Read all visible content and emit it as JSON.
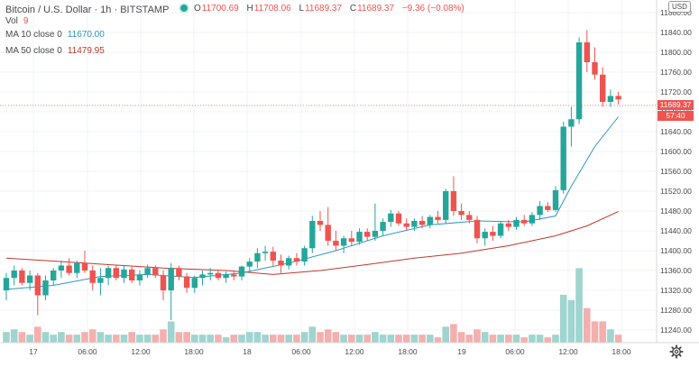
{
  "header": {
    "symbol_title": "Bitcoin / U.S. Dollar",
    "interval": "1h",
    "exchange": "BITSTAMP",
    "ohlc": {
      "open_label": "O",
      "open": "11700.69",
      "high_label": "H",
      "high": "11708.06",
      "low_label": "L",
      "low": "11689.37",
      "close_label": "C",
      "close": "11689.37",
      "change": "−9.36 (−0.08%)"
    },
    "volume": {
      "label": "Vol",
      "value": "9"
    },
    "ma10": {
      "label": "MA 10 close 0",
      "value": "11670.00"
    },
    "ma50": {
      "label": "MA 50 close 0",
      "value": "11479.95"
    }
  },
  "price_axis": {
    "currency": "USD",
    "ticks": [
      "11880.00",
      "11840.00",
      "11800.00",
      "11760.00",
      "11720.00",
      "11680.00",
      "11640.00",
      "11600.00",
      "11560.00",
      "11520.00",
      "11480.00",
      "11440.00",
      "11400.00",
      "11360.00",
      "11320.00",
      "11280.00",
      "11240.00"
    ],
    "last_price": "11689.37",
    "countdown": "57:40"
  },
  "time_axis": {
    "ticks": [
      "17",
      "06:00",
      "12:00",
      "18:00",
      "18",
      "06:00",
      "12:00",
      "18:00",
      "19",
      "06:00",
      "12:00",
      "18:00"
    ]
  },
  "colors": {
    "up": "#26a69a",
    "down": "#ef5350",
    "ma10": "#2c97c4",
    "ma50": "#c0392b",
    "vol_up": "#9fd4cf",
    "vol_down": "#f3b0ae"
  },
  "icons": {
    "settings": "gear-icon"
  },
  "chart_data": {
    "type": "candlestick",
    "y_range": [
      11200,
      11890
    ],
    "candles": [
      {
        "o": 11320,
        "h": 11355,
        "l": 11300,
        "c": 11345,
        "v": 4
      },
      {
        "o": 11345,
        "h": 11370,
        "l": 11330,
        "c": 11360,
        "v": 5
      },
      {
        "o": 11360,
        "h": 11365,
        "l": 11330,
        "c": 11335,
        "v": 4
      },
      {
        "o": 11335,
        "h": 11360,
        "l": 11320,
        "c": 11350,
        "v": 3
      },
      {
        "o": 11350,
        "h": 11355,
        "l": 11270,
        "c": 11310,
        "v": 6
      },
      {
        "o": 11310,
        "h": 11350,
        "l": 11300,
        "c": 11340,
        "v": 4
      },
      {
        "o": 11340,
        "h": 11365,
        "l": 11330,
        "c": 11360,
        "v": 3
      },
      {
        "o": 11360,
        "h": 11380,
        "l": 11345,
        "c": 11370,
        "v": 4
      },
      {
        "o": 11370,
        "h": 11385,
        "l": 11350,
        "c": 11355,
        "v": 3
      },
      {
        "o": 11355,
        "h": 11380,
        "l": 11345,
        "c": 11375,
        "v": 3
      },
      {
        "o": 11375,
        "h": 11400,
        "l": 11355,
        "c": 11360,
        "v": 4
      },
      {
        "o": 11360,
        "h": 11370,
        "l": 11320,
        "c": 11335,
        "v": 5
      },
      {
        "o": 11335,
        "h": 11365,
        "l": 11310,
        "c": 11345,
        "v": 4
      },
      {
        "o": 11345,
        "h": 11370,
        "l": 11330,
        "c": 11365,
        "v": 3
      },
      {
        "o": 11365,
        "h": 11370,
        "l": 11340,
        "c": 11345,
        "v": 3
      },
      {
        "o": 11345,
        "h": 11370,
        "l": 11335,
        "c": 11362,
        "v": 3
      },
      {
        "o": 11362,
        "h": 11368,
        "l": 11335,
        "c": 11340,
        "v": 4
      },
      {
        "o": 11340,
        "h": 11360,
        "l": 11330,
        "c": 11352,
        "v": 3
      },
      {
        "o": 11352,
        "h": 11372,
        "l": 11345,
        "c": 11365,
        "v": 3
      },
      {
        "o": 11365,
        "h": 11370,
        "l": 11345,
        "c": 11350,
        "v": 3
      },
      {
        "o": 11350,
        "h": 11360,
        "l": 11300,
        "c": 11320,
        "v": 5
      },
      {
        "o": 11320,
        "h": 11375,
        "l": 11260,
        "c": 11365,
        "v": 8
      },
      {
        "o": 11365,
        "h": 11370,
        "l": 11340,
        "c": 11348,
        "v": 4
      },
      {
        "o": 11348,
        "h": 11355,
        "l": 11315,
        "c": 11325,
        "v": 4
      },
      {
        "o": 11325,
        "h": 11350,
        "l": 11315,
        "c": 11345,
        "v": 3
      },
      {
        "o": 11345,
        "h": 11360,
        "l": 11330,
        "c": 11352,
        "v": 3
      },
      {
        "o": 11352,
        "h": 11365,
        "l": 11340,
        "c": 11355,
        "v": 3
      },
      {
        "o": 11355,
        "h": 11362,
        "l": 11340,
        "c": 11345,
        "v": 3
      },
      {
        "o": 11345,
        "h": 11358,
        "l": 11335,
        "c": 11352,
        "v": 2
      },
      {
        "o": 11352,
        "h": 11360,
        "l": 11340,
        "c": 11348,
        "v": 3
      },
      {
        "o": 11348,
        "h": 11370,
        "l": 11340,
        "c": 11368,
        "v": 3
      },
      {
        "o": 11368,
        "h": 11385,
        "l": 11355,
        "c": 11378,
        "v": 4
      },
      {
        "o": 11378,
        "h": 11405,
        "l": 11365,
        "c": 11395,
        "v": 4
      },
      {
        "o": 11395,
        "h": 11410,
        "l": 11380,
        "c": 11398,
        "v": 3
      },
      {
        "o": 11398,
        "h": 11408,
        "l": 11370,
        "c": 11380,
        "v": 3
      },
      {
        "o": 11380,
        "h": 11392,
        "l": 11355,
        "c": 11370,
        "v": 3
      },
      {
        "o": 11370,
        "h": 11390,
        "l": 11362,
        "c": 11385,
        "v": 3
      },
      {
        "o": 11385,
        "h": 11395,
        "l": 11370,
        "c": 11378,
        "v": 3
      },
      {
        "o": 11378,
        "h": 11410,
        "l": 11370,
        "c": 11405,
        "v": 4
      },
      {
        "o": 11405,
        "h": 11470,
        "l": 11395,
        "c": 11460,
        "v": 6
      },
      {
        "o": 11460,
        "h": 11480,
        "l": 11440,
        "c": 11452,
        "v": 4
      },
      {
        "o": 11452,
        "h": 11488,
        "l": 11410,
        "c": 11420,
        "v": 5
      },
      {
        "o": 11420,
        "h": 11440,
        "l": 11400,
        "c": 11410,
        "v": 4
      },
      {
        "o": 11410,
        "h": 11430,
        "l": 11395,
        "c": 11425,
        "v": 3
      },
      {
        "o": 11425,
        "h": 11440,
        "l": 11410,
        "c": 11418,
        "v": 3
      },
      {
        "o": 11418,
        "h": 11445,
        "l": 11412,
        "c": 11438,
        "v": 3
      },
      {
        "o": 11438,
        "h": 11445,
        "l": 11420,
        "c": 11428,
        "v": 3
      },
      {
        "o": 11428,
        "h": 11495,
        "l": 11420,
        "c": 11440,
        "v": 4
      },
      {
        "o": 11440,
        "h": 11465,
        "l": 11430,
        "c": 11458,
        "v": 3
      },
      {
        "o": 11458,
        "h": 11482,
        "l": 11448,
        "c": 11475,
        "v": 3
      },
      {
        "o": 11475,
        "h": 11480,
        "l": 11450,
        "c": 11455,
        "v": 3
      },
      {
        "o": 11455,
        "h": 11465,
        "l": 11440,
        "c": 11448,
        "v": 3
      },
      {
        "o": 11448,
        "h": 11465,
        "l": 11440,
        "c": 11460,
        "v": 3
      },
      {
        "o": 11460,
        "h": 11470,
        "l": 11445,
        "c": 11452,
        "v": 3
      },
      {
        "o": 11452,
        "h": 11472,
        "l": 11445,
        "c": 11468,
        "v": 3
      },
      {
        "o": 11468,
        "h": 11480,
        "l": 11455,
        "c": 11462,
        "v": 2
      },
      {
        "o": 11462,
        "h": 11525,
        "l": 11455,
        "c": 11520,
        "v": 6
      },
      {
        "o": 11520,
        "h": 11550,
        "l": 11470,
        "c": 11480,
        "v": 7
      },
      {
        "o": 11480,
        "h": 11495,
        "l": 11462,
        "c": 11472,
        "v": 4
      },
      {
        "o": 11472,
        "h": 11480,
        "l": 11455,
        "c": 11462,
        "v": 3
      },
      {
        "o": 11462,
        "h": 11470,
        "l": 11415,
        "c": 11425,
        "v": 5
      },
      {
        "o": 11425,
        "h": 11445,
        "l": 11410,
        "c": 11438,
        "v": 4
      },
      {
        "o": 11438,
        "h": 11450,
        "l": 11420,
        "c": 11430,
        "v": 3
      },
      {
        "o": 11430,
        "h": 11460,
        "l": 11425,
        "c": 11455,
        "v": 3
      },
      {
        "o": 11455,
        "h": 11462,
        "l": 11440,
        "c": 11448,
        "v": 3
      },
      {
        "o": 11448,
        "h": 11468,
        "l": 11442,
        "c": 11462,
        "v": 3
      },
      {
        "o": 11462,
        "h": 11472,
        "l": 11450,
        "c": 11455,
        "v": 2
      },
      {
        "o": 11455,
        "h": 11478,
        "l": 11450,
        "c": 11472,
        "v": 3
      },
      {
        "o": 11472,
        "h": 11500,
        "l": 11462,
        "c": 11490,
        "v": 3
      },
      {
        "o": 11490,
        "h": 11498,
        "l": 11478,
        "c": 11482,
        "v": 2
      },
      {
        "o": 11482,
        "h": 11530,
        "l": 11478,
        "c": 11522,
        "v": 3
      },
      {
        "o": 11522,
        "h": 11660,
        "l": 11515,
        "c": 11650,
        "v": 18
      },
      {
        "o": 11650,
        "h": 11690,
        "l": 11610,
        "c": 11665,
        "v": 16
      },
      {
        "o": 11665,
        "h": 11830,
        "l": 11655,
        "c": 11820,
        "v": 28
      },
      {
        "o": 11820,
        "h": 11845,
        "l": 11760,
        "c": 11780,
        "v": 13
      },
      {
        "o": 11780,
        "h": 11810,
        "l": 11745,
        "c": 11755,
        "v": 8
      },
      {
        "o": 11755,
        "h": 11770,
        "l": 11690,
        "c": 11700,
        "v": 8
      },
      {
        "o": 11700,
        "h": 11725,
        "l": 11690,
        "c": 11712,
        "v": 5
      },
      {
        "o": 11712,
        "h": 11720,
        "l": 11695,
        "c": 11705,
        "v": 3
      }
    ],
    "ma10": [
      [
        0,
        11322
      ],
      [
        6,
        11330
      ],
      [
        12,
        11348
      ],
      [
        18,
        11352
      ],
      [
        24,
        11346
      ],
      [
        30,
        11355
      ],
      [
        36,
        11375
      ],
      [
        42,
        11400
      ],
      [
        48,
        11430
      ],
      [
        54,
        11452
      ],
      [
        60,
        11460
      ],
      [
        66,
        11458
      ],
      [
        70,
        11470
      ],
      [
        72,
        11530
      ],
      [
        75,
        11610
      ],
      [
        78,
        11670
      ]
    ],
    "ma50": [
      [
        0,
        11385
      ],
      [
        10,
        11375
      ],
      [
        20,
        11365
      ],
      [
        28,
        11360
      ],
      [
        34,
        11352
      ],
      [
        40,
        11360
      ],
      [
        46,
        11372
      ],
      [
        52,
        11385
      ],
      [
        58,
        11395
      ],
      [
        64,
        11410
      ],
      [
        70,
        11430
      ],
      [
        74,
        11450
      ],
      [
        78,
        11479
      ]
    ]
  }
}
